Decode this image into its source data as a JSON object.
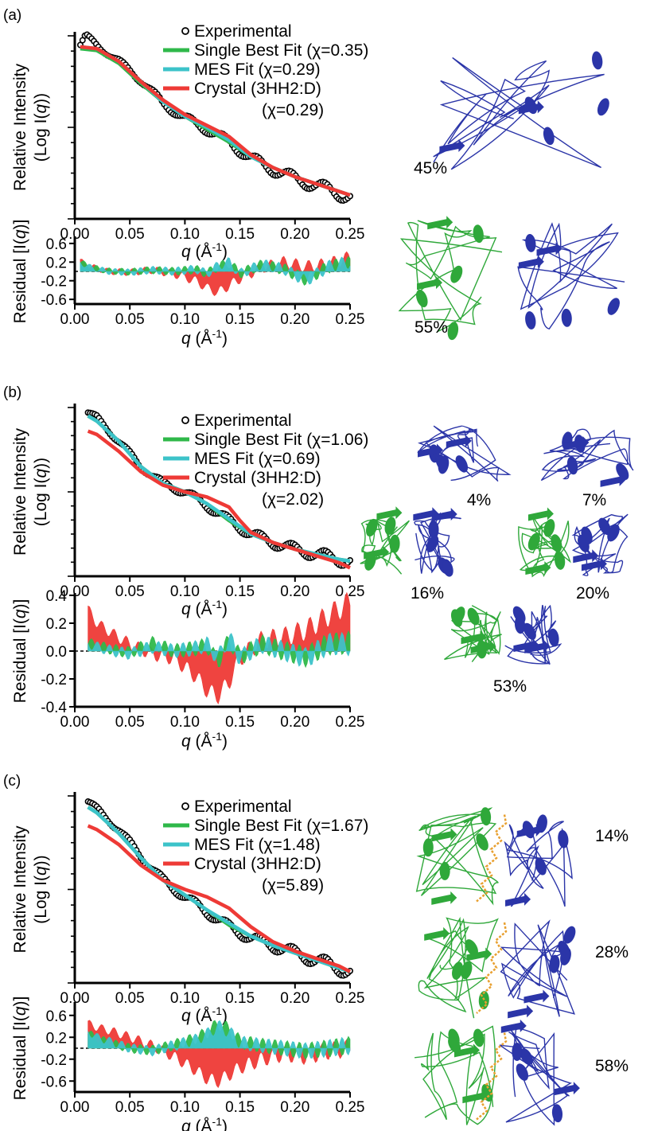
{
  "colors": {
    "experimental": "#000000",
    "single": "#2fb84a",
    "mes": "#3cc3c9",
    "crystal": "#ee3a36",
    "chain_blue": "#2b35a8",
    "chain_green": "#2fa83a",
    "ligand": "#e8a030"
  },
  "chart_data": [
    {
      "panel": "(a)",
      "type": "line",
      "x_range": [
        0,
        0.25
      ],
      "x_ticks": [
        "0.00",
        "0.05",
        "0.10",
        "0.15",
        "0.20",
        "0.25"
      ],
      "intensity": {
        "ylabel_line1": "Relative Intensity",
        "ylabel_line2": "(Log I(",
        "ylabel_q": "q",
        "ylabel_end": "))",
        "xlabel_q": "q",
        "xlabel_rest": " (Å",
        "xlabel_exp": "-1",
        "xlabel_end": ")",
        "legend": {
          "experimental": "Experimental",
          "single": "Single Best Fit (χ=0.35)",
          "mes": "MES Fit (χ=0.29)",
          "crystal": "Crystal (3HH2:D)",
          "crystal_chi": "(χ=0.29)"
        },
        "series": {
          "experimental": {
            "x": [
              0.005,
              0.01,
              0.02,
              0.04,
              0.06,
              0.08,
              0.1,
              0.12,
              0.14,
              0.16,
              0.18,
              0.2,
              0.22,
              0.24,
              0.25
            ],
            "y": [
              0.95,
              1.0,
              0.95,
              0.86,
              0.76,
              0.63,
              0.55,
              0.49,
              0.42,
              0.33,
              0.27,
              0.22,
              0.18,
              0.14,
              0.12
            ]
          },
          "single": {
            "x": [
              0.005,
              0.02,
              0.04,
              0.06,
              0.08,
              0.1,
              0.12,
              0.14,
              0.16,
              0.18,
              0.2,
              0.22,
              0.24,
              0.25
            ],
            "y": [
              0.93,
              0.92,
              0.85,
              0.74,
              0.64,
              0.56,
              0.49,
              0.42,
              0.34,
              0.28,
              0.23,
              0.19,
              0.15,
              0.13
            ]
          },
          "mes": {
            "x": [
              0.005,
              0.02,
              0.04,
              0.06,
              0.08,
              0.1,
              0.12,
              0.14,
              0.16,
              0.18,
              0.2,
              0.22,
              0.24,
              0.25
            ],
            "y": [
              0.94,
              0.93,
              0.86,
              0.75,
              0.64,
              0.56,
              0.5,
              0.43,
              0.34,
              0.28,
              0.23,
              0.19,
              0.15,
              0.13
            ]
          },
          "crystal": {
            "x": [
              0.005,
              0.02,
              0.04,
              0.06,
              0.08,
              0.1,
              0.12,
              0.14,
              0.16,
              0.18,
              0.2,
              0.22,
              0.24,
              0.25
            ],
            "y": [
              0.94,
              0.93,
              0.86,
              0.75,
              0.65,
              0.57,
              0.51,
              0.45,
              0.35,
              0.28,
              0.23,
              0.19,
              0.15,
              0.13
            ]
          }
        }
      },
      "residual": {
        "ylabel_pre": "Residual [I(",
        "ylabel_q": "q",
        "ylabel_end": ")]",
        "y_range": [
          -0.7,
          0.7
        ],
        "y_ticks": [
          "0.6",
          "0.2",
          "-0.2",
          "-0.6"
        ],
        "y_tick_values": [
          0.6,
          0.2,
          -0.2,
          -0.6
        ],
        "xlabel_q": "q",
        "xlabel_rest": " (Å",
        "xlabel_exp": "-1",
        "xlabel_end": ")",
        "x": [
          0.005,
          0.015,
          0.03,
          0.05,
          0.07,
          0.09,
          0.11,
          0.12,
          0.13,
          0.14,
          0.15,
          0.17,
          0.19,
          0.21,
          0.23,
          0.25
        ],
        "crystal": [
          0.22,
          0.1,
          0.0,
          -0.02,
          0.03,
          -0.05,
          -0.2,
          -0.35,
          -0.45,
          -0.3,
          -0.15,
          0.08,
          0.2,
          0.1,
          0.15,
          0.3
        ],
        "mes": [
          0.18,
          0.08,
          0.0,
          -0.02,
          0.03,
          0.0,
          0.05,
          -0.05,
          0.12,
          0.2,
          -0.05,
          0.15,
          0.05,
          -0.2,
          0.1,
          0.2
        ],
        "single": [
          0.2,
          0.09,
          0.01,
          -0.01,
          0.03,
          0.0,
          0.04,
          -0.04,
          0.1,
          0.18,
          -0.04,
          0.14,
          0.05,
          -0.18,
          0.1,
          0.18
        ]
      }
    },
    {
      "panel": "(b)",
      "type": "line",
      "x_range": [
        0,
        0.25
      ],
      "x_ticks": [
        "0.00",
        "0.05",
        "0.10",
        "0.15",
        "0.20",
        "0.25"
      ],
      "intensity": {
        "ylabel_line1": "Relative Intensity",
        "ylabel_line2": "(Log I(",
        "ylabel_q": "q",
        "ylabel_end": "))",
        "xlabel_q": "q",
        "xlabel_rest": " (Å",
        "xlabel_exp": "-1",
        "xlabel_end": ")",
        "legend": {
          "experimental": "Experimental",
          "single": "Single Best Fit (χ=1.06)",
          "mes": "MES Fit (χ=0.69)",
          "crystal": "Crystal (3HH2:D)",
          "crystal_chi": "(χ=2.02)"
        },
        "series": {
          "experimental": {
            "x": [
              0.012,
              0.02,
              0.04,
              0.06,
              0.08,
              0.1,
              0.12,
              0.14,
              0.16,
              0.18,
              0.2,
              0.22,
              0.24,
              0.25
            ],
            "y": [
              0.97,
              0.94,
              0.8,
              0.65,
              0.55,
              0.5,
              0.42,
              0.33,
              0.25,
              0.2,
              0.16,
              0.13,
              0.1,
              0.09
            ]
          },
          "single": {
            "x": [
              0.012,
              0.02,
              0.04,
              0.06,
              0.08,
              0.1,
              0.12,
              0.14,
              0.16,
              0.18,
              0.2,
              0.22,
              0.24,
              0.25
            ],
            "y": [
              0.95,
              0.92,
              0.8,
              0.65,
              0.55,
              0.5,
              0.43,
              0.33,
              0.25,
              0.2,
              0.16,
              0.13,
              0.1,
              0.09
            ]
          },
          "mes": {
            "x": [
              0.012,
              0.02,
              0.04,
              0.06,
              0.08,
              0.1,
              0.12,
              0.14,
              0.16,
              0.18,
              0.2,
              0.22,
              0.24,
              0.25
            ],
            "y": [
              0.95,
              0.92,
              0.8,
              0.65,
              0.55,
              0.5,
              0.43,
              0.34,
              0.25,
              0.2,
              0.16,
              0.13,
              0.1,
              0.09
            ]
          },
          "crystal": {
            "x": [
              0.012,
              0.02,
              0.04,
              0.06,
              0.08,
              0.1,
              0.12,
              0.14,
              0.15,
              0.16,
              0.18,
              0.2,
              0.22,
              0.24,
              0.25
            ],
            "y": [
              0.86,
              0.84,
              0.74,
              0.62,
              0.54,
              0.5,
              0.47,
              0.41,
              0.33,
              0.26,
              0.2,
              0.16,
              0.12,
              0.08,
              0.05
            ]
          }
        }
      },
      "residual": {
        "ylabel_pre": "Residual [I(",
        "ylabel_q": "q",
        "ylabel_end": ")]",
        "y_range": [
          -0.4,
          0.4
        ],
        "y_ticks": [
          "0.4",
          "0.2",
          "0.0",
          "-0.2",
          "-0.4"
        ],
        "y_tick_values": [
          0.4,
          0.2,
          0.0,
          -0.2,
          -0.4
        ],
        "xlabel_q": "q",
        "xlabel_rest": " (Å",
        "xlabel_exp": "-1",
        "xlabel_end": ")",
        "x": [
          0.012,
          0.02,
          0.035,
          0.05,
          0.07,
          0.09,
          0.11,
          0.12,
          0.13,
          0.14,
          0.15,
          0.17,
          0.19,
          0.21,
          0.23,
          0.25
        ],
        "crystal": [
          0.3,
          0.2,
          0.12,
          0.05,
          -0.02,
          -0.05,
          -0.18,
          -0.28,
          -0.32,
          -0.22,
          -0.05,
          0.08,
          0.1,
          0.15,
          0.25,
          0.35
        ],
        "mes": [
          0.05,
          0.03,
          0.0,
          -0.02,
          0.03,
          0.0,
          0.02,
          0.05,
          -0.05,
          0.1,
          -0.05,
          0.05,
          0.0,
          -0.05,
          0.05,
          0.05
        ],
        "single": [
          0.06,
          0.04,
          0.01,
          -0.01,
          0.06,
          0.0,
          0.02,
          0.04,
          -0.08,
          0.08,
          -0.04,
          0.05,
          0.0,
          -0.04,
          0.05,
          0.06
        ]
      }
    },
    {
      "panel": "(c)",
      "type": "line",
      "x_range": [
        0,
        0.25
      ],
      "x_ticks": [
        "0.00",
        "0.05",
        "0.10",
        "0.15",
        "0.20",
        "0.25"
      ],
      "intensity": {
        "ylabel_line1": "Relative Intensity",
        "ylabel_line2": "(Log I(",
        "ylabel_q": "q",
        "ylabel_end": "))",
        "xlabel_q": "q",
        "xlabel_rest": " (Å",
        "xlabel_exp": "-1",
        "xlabel_end": ")",
        "legend": {
          "experimental": "Experimental",
          "single": "Single Best Fit (χ=1.67)",
          "mes": "MES Fit (χ=1.48)",
          "crystal": "Crystal (3HH2:D)",
          "crystal_chi": "(χ=5.89)"
        },
        "series": {
          "experimental": {
            "x": [
              0.012,
              0.02,
              0.04,
              0.06,
              0.08,
              0.1,
              0.12,
              0.14,
              0.16,
              0.18,
              0.2,
              0.22,
              0.24,
              0.25
            ],
            "y": [
              0.97,
              0.93,
              0.82,
              0.68,
              0.55,
              0.46,
              0.38,
              0.3,
              0.24,
              0.2,
              0.16,
              0.12,
              0.08,
              0.06
            ]
          },
          "single": {
            "x": [
              0.012,
              0.02,
              0.04,
              0.06,
              0.08,
              0.1,
              0.12,
              0.14,
              0.16,
              0.18,
              0.2,
              0.22,
              0.24,
              0.25
            ],
            "y": [
              0.94,
              0.91,
              0.8,
              0.67,
              0.55,
              0.47,
              0.39,
              0.31,
              0.25,
              0.2,
              0.16,
              0.12,
              0.08,
              0.06
            ]
          },
          "mes": {
            "x": [
              0.012,
              0.02,
              0.04,
              0.06,
              0.08,
              0.1,
              0.12,
              0.14,
              0.16,
              0.18,
              0.2,
              0.22,
              0.24,
              0.25
            ],
            "y": [
              0.94,
              0.91,
              0.8,
              0.67,
              0.55,
              0.47,
              0.39,
              0.32,
              0.25,
              0.2,
              0.16,
              0.12,
              0.08,
              0.06
            ]
          },
          "crystal": {
            "x": [
              0.012,
              0.02,
              0.04,
              0.06,
              0.08,
              0.1,
              0.12,
              0.14,
              0.16,
              0.18,
              0.2,
              0.22,
              0.24,
              0.25
            ],
            "y": [
              0.84,
              0.82,
              0.74,
              0.63,
              0.55,
              0.5,
              0.46,
              0.4,
              0.3,
              0.22,
              0.17,
              0.13,
              0.09,
              0.06
            ]
          }
        }
      },
      "residual": {
        "ylabel_pre": "Residual [I(",
        "ylabel_q": "q",
        "ylabel_end": ")]",
        "y_range": [
          -0.8,
          0.8
        ],
        "y_ticks": [
          "0.6",
          "0.2",
          "-0.2",
          "-0.6"
        ],
        "y_tick_values": [
          0.6,
          0.2,
          -0.2,
          -0.6
        ],
        "xlabel_q": "q",
        "xlabel_rest": " (Å",
        "xlabel_exp": "-1",
        "xlabel_end": ")",
        "x": [
          0.012,
          0.02,
          0.035,
          0.05,
          0.07,
          0.09,
          0.11,
          0.12,
          0.13,
          0.14,
          0.15,
          0.17,
          0.19,
          0.21,
          0.23,
          0.25
        ],
        "crystal": [
          0.45,
          0.38,
          0.3,
          0.2,
          0.05,
          -0.15,
          -0.4,
          -0.55,
          -0.6,
          -0.48,
          -0.35,
          -0.2,
          -0.1,
          -0.15,
          -0.05,
          0.0
        ],
        "mes": [
          0.3,
          0.2,
          0.1,
          0.0,
          -0.05,
          0.05,
          0.15,
          0.25,
          0.4,
          0.3,
          0.1,
          0.05,
          0.0,
          -0.05,
          0.0,
          0.05
        ],
        "single": [
          0.28,
          0.18,
          0.08,
          0.0,
          -0.04,
          0.06,
          0.18,
          0.28,
          0.45,
          0.35,
          0.12,
          0.05,
          0.0,
          -0.05,
          0.0,
          0.05
        ]
      }
    }
  ],
  "structures": {
    "a": [
      "45%",
      "55%"
    ],
    "b": [
      "4%",
      "7%",
      "16%",
      "20%",
      "53%"
    ],
    "c": [
      "14%",
      "28%",
      "58%"
    ]
  }
}
